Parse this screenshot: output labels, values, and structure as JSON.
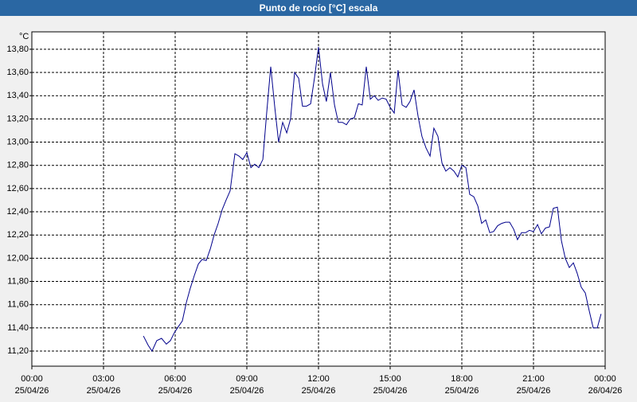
{
  "chart_data": {
    "type": "line",
    "title": "Punto de rocío [°C] escala",
    "y_label": "°C",
    "ylim": [
      11.07,
      13.95
    ],
    "xlim": [
      0,
      24
    ],
    "grid": true,
    "yticks": [
      {
        "value": 11.2,
        "label": "11,20"
      },
      {
        "value": 11.4,
        "label": "11,40"
      },
      {
        "value": 11.6,
        "label": "11,60"
      },
      {
        "value": 11.8,
        "label": "11,80"
      },
      {
        "value": 12.0,
        "label": "12,00"
      },
      {
        "value": 12.2,
        "label": "12,20"
      },
      {
        "value": 12.4,
        "label": "12,40"
      },
      {
        "value": 12.6,
        "label": "12,60"
      },
      {
        "value": 12.8,
        "label": "12,80"
      },
      {
        "value": 13.0,
        "label": "13,00"
      },
      {
        "value": 13.2,
        "label": "13,20"
      },
      {
        "value": 13.4,
        "label": "13,40"
      },
      {
        "value": 13.6,
        "label": "13,60"
      },
      {
        "value": 13.8,
        "label": "13,80"
      }
    ],
    "xticks": [
      {
        "value": 0,
        "label": "00:00"
      },
      {
        "value": 3,
        "label": "03:00"
      },
      {
        "value": 6,
        "label": "06:00"
      },
      {
        "value": 9,
        "label": "09:00"
      },
      {
        "value": 12,
        "label": "12:00"
      },
      {
        "value": 15,
        "label": "15:00"
      },
      {
        "value": 18,
        "label": "18:00"
      },
      {
        "value": 21,
        "label": "21:00"
      },
      {
        "value": 24,
        "label": "00:00"
      }
    ],
    "xtick_dates": [
      "25/04/26",
      "25/04/26",
      "25/04/26",
      "25/04/26",
      "25/04/26",
      "25/04/26",
      "25/04/26",
      "25/04/26",
      "26/04/26"
    ],
    "x": [
      4.67,
      4.87,
      5.03,
      5.23,
      5.43,
      5.63,
      5.8,
      5.97,
      6.13,
      6.3,
      6.47,
      6.63,
      6.8,
      6.97,
      7.13,
      7.3,
      7.47,
      7.63,
      7.8,
      7.97,
      8.13,
      8.3,
      8.5,
      8.67,
      8.83,
      9.0,
      9.17,
      9.33,
      9.5,
      9.67,
      9.83,
      10.0,
      10.17,
      10.33,
      10.5,
      10.67,
      10.83,
      11.0,
      11.17,
      11.33,
      11.5,
      11.67,
      11.83,
      12.0,
      12.17,
      12.33,
      12.5,
      12.67,
      12.83,
      13.0,
      13.17,
      13.33,
      13.5,
      13.67,
      13.83,
      14.0,
      14.17,
      14.33,
      14.5,
      14.67,
      14.83,
      15.0,
      15.17,
      15.33,
      15.5,
      15.67,
      15.83,
      16.0,
      16.17,
      16.33,
      16.5,
      16.67,
      16.83,
      17.0,
      17.17,
      17.33,
      17.5,
      17.67,
      17.83,
      18.0,
      18.17,
      18.33,
      18.5,
      18.67,
      18.83,
      19.0,
      19.17,
      19.33,
      19.5,
      19.67,
      19.83,
      20.0,
      20.17,
      20.33,
      20.5,
      20.67,
      20.83,
      21.0,
      21.17,
      21.33,
      21.5,
      21.67,
      21.83,
      22.0,
      22.17,
      22.33,
      22.5,
      22.67,
      22.83,
      23.0,
      23.17,
      23.33,
      23.5,
      23.67,
      23.83
    ],
    "series": [
      {
        "color": "#00008b",
        "values": [
          11.33,
          11.25,
          11.2,
          11.29,
          11.31,
          11.26,
          11.29,
          11.36,
          11.41,
          11.46,
          11.62,
          11.74,
          11.85,
          11.95,
          11.99,
          11.98,
          12.08,
          12.2,
          12.3,
          12.42,
          12.5,
          12.58,
          12.9,
          12.88,
          12.85,
          12.91,
          12.78,
          12.81,
          12.78,
          12.85,
          13.25,
          13.65,
          13.3,
          13.0,
          13.17,
          13.08,
          13.2,
          13.6,
          13.55,
          13.31,
          13.31,
          13.33,
          13.55,
          13.82,
          13.5,
          13.35,
          13.6,
          13.32,
          13.17,
          13.17,
          13.15,
          13.2,
          13.21,
          13.33,
          13.32,
          13.65,
          13.37,
          13.4,
          13.36,
          13.38,
          13.37,
          13.3,
          13.25,
          13.62,
          13.32,
          13.3,
          13.35,
          13.45,
          13.22,
          13.05,
          12.95,
          12.88,
          13.12,
          13.05,
          12.82,
          12.75,
          12.78,
          12.75,
          12.7,
          12.8,
          12.78,
          12.55,
          12.53,
          12.45,
          12.3,
          12.33,
          12.22,
          12.23,
          12.28,
          12.3,
          12.31,
          12.31,
          12.25,
          12.16,
          12.22,
          12.22,
          12.24,
          12.23,
          12.29,
          12.21,
          12.26,
          12.27,
          12.43,
          12.44,
          12.15,
          12.0,
          11.92,
          11.96,
          11.87,
          11.75,
          11.7,
          11.55,
          11.4,
          11.4,
          11.52
        ]
      }
    ]
  }
}
